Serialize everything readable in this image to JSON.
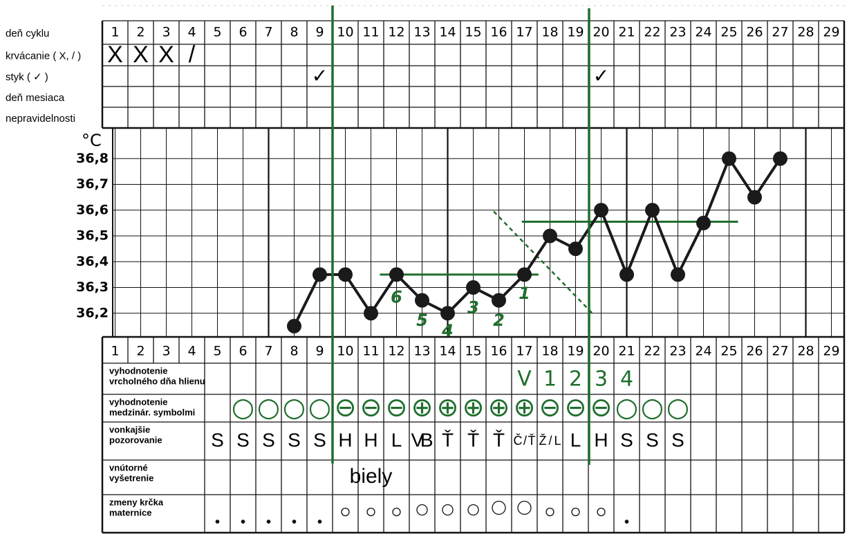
{
  "chart_data": {
    "type": "line",
    "ylabel": "°C",
    "x": [
      1,
      2,
      3,
      4,
      5,
      6,
      7,
      8,
      9,
      10,
      11,
      12,
      13,
      14,
      15,
      16,
      17,
      18,
      19,
      20,
      21,
      22,
      23,
      24,
      25,
      26,
      27,
      28,
      29
    ],
    "xlim": [
      0.5,
      29.5
    ],
    "ylim": [
      36.1,
      36.9
    ],
    "yticks": [
      {
        "value": 36.2,
        "label": "36,2"
      },
      {
        "value": 36.3,
        "label": "36,3"
      },
      {
        "value": 36.4,
        "label": "36,4"
      },
      {
        "value": 36.5,
        "label": "36,5"
      },
      {
        "value": 36.6,
        "label": "36,6"
      },
      {
        "value": 36.7,
        "label": "36,7"
      },
      {
        "value": 36.8,
        "label": "36,8"
      }
    ],
    "grid": true,
    "series": [
      {
        "color": "#1a1a1a",
        "values": [
          null,
          null,
          null,
          null,
          null,
          null,
          null,
          36.15,
          36.35,
          36.35,
          36.2,
          36.35,
          36.25,
          36.2,
          36.3,
          36.25,
          36.35,
          36.5,
          36.45,
          36.6,
          36.35,
          36.6,
          36.35,
          36.55,
          36.8,
          36.65,
          36.8,
          null,
          null
        ]
      }
    ],
    "annotation_color": "#1f6e2c",
    "annotations": [
      {
        "text": "6",
        "x": 12,
        "y": 36.26
      },
      {
        "text": "5",
        "x": 13,
        "y": 36.17
      },
      {
        "text": "4",
        "x": 14,
        "y": 36.13
      },
      {
        "text": "3",
        "x": 15,
        "y": 36.22
      },
      {
        "text": "2",
        "x": 16,
        "y": 36.17
      },
      {
        "text": "1",
        "x": 17,
        "y": 36.275
      }
    ],
    "reference_lines": [
      {
        "y": 36.35,
        "x": [
          11.35,
          17.55
        ]
      },
      {
        "y": 36.555,
        "x": [
          16.9,
          25.35
        ]
      }
    ],
    "trend_line": {
      "x": [
        15.8,
        19.65
      ],
      "y": [
        36.595,
        36.2
      ]
    }
  },
  "table": {
    "top_labels": [
      "deň cyklu",
      "krvácanie ( X, / )",
      "styk ( ✓ )",
      "deň mesiaca",
      "nepravidelnosti"
    ],
    "bleeding": [
      "X",
      "X",
      "X",
      "/",
      null,
      null,
      null,
      null,
      null,
      null,
      null,
      null,
      null,
      null,
      null,
      null,
      null,
      null,
      null,
      null,
      null,
      null,
      null,
      null,
      null,
      null,
      null,
      null,
      null
    ],
    "intercourse": [
      null,
      null,
      null,
      null,
      null,
      null,
      null,
      null,
      "✓",
      null,
      null,
      null,
      null,
      null,
      null,
      null,
      null,
      null,
      null,
      "✓",
      null,
      null,
      null,
      null,
      null,
      null,
      null,
      null,
      null
    ],
    "bottom_labels": [
      [
        "vyhodnotenie",
        "vrcholného  dňa hlienu"
      ],
      [
        "vyhodnotenie",
        "medzinár. symbolmi"
      ],
      [
        "vonkajšie",
        "pozorovanie"
      ],
      [
        "vnútorné",
        "vyšetrenie"
      ],
      [
        "zmeny krčka",
        "maternice"
      ]
    ],
    "peak_day": [
      null,
      null,
      null,
      null,
      null,
      null,
      null,
      null,
      null,
      null,
      null,
      null,
      null,
      null,
      null,
      null,
      "V",
      "1",
      "2",
      "3",
      "4",
      null,
      null,
      null,
      null,
      null,
      null,
      null,
      null
    ],
    "mucus_symbols": [
      null,
      null,
      null,
      null,
      null,
      "○",
      "○",
      "○",
      "○",
      "⊖",
      "⊖",
      "⊖",
      "⊕",
      "⊕",
      "⊕",
      "⊕",
      "⊕",
      "⊖",
      "⊖",
      "⊖",
      "○",
      "○",
      "○",
      null,
      null,
      null,
      null,
      null,
      null
    ],
    "external": [
      null,
      null,
      null,
      null,
      "S",
      "S",
      "S",
      "S",
      "S",
      "H",
      "H",
      "L",
      "VB",
      "Ť",
      "Ť",
      "Ť",
      "Č/Ť",
      "Ž/L",
      "L",
      "H",
      "S",
      "S",
      "S",
      null,
      null,
      null,
      null,
      null,
      null
    ],
    "internal": [
      null,
      null,
      null,
      null,
      null,
      null,
      null,
      null,
      null,
      null,
      "biely",
      null,
      null,
      null,
      null,
      null,
      null,
      null,
      null,
      null,
      null,
      null,
      null,
      null,
      null,
      null,
      null,
      null,
      null
    ],
    "cervix": [
      null,
      null,
      null,
      null,
      1,
      1,
      1,
      1,
      1,
      2,
      2,
      2,
      3,
      3,
      3,
      4,
      4,
      2,
      2,
      2,
      1,
      null,
      null,
      null,
      null,
      null,
      null,
      null,
      null
    ]
  }
}
